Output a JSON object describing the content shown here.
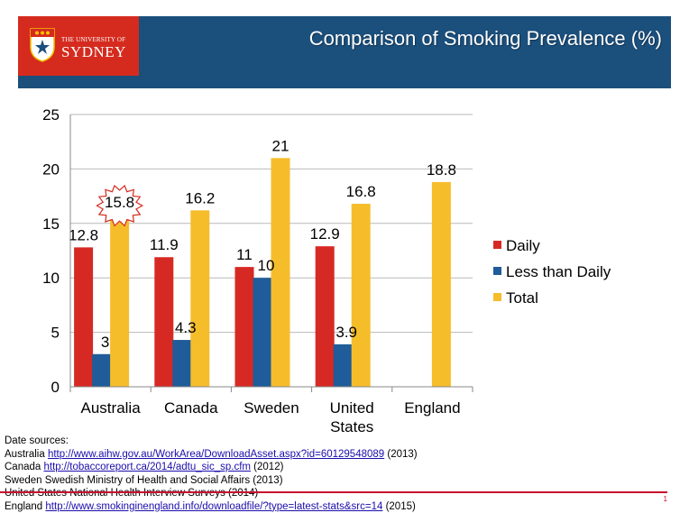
{
  "header": {
    "logo_small": "THE UNIVERSITY OF",
    "logo_big": "SYDNEY",
    "title": "Comparison of Smoking Prevalence (%)"
  },
  "colors": {
    "header_band": "#1b4f7c",
    "logo_box": "#d52b1e",
    "daily": "#d72924",
    "less_than_daily": "#1f5c99",
    "total": "#f6bd2b",
    "highlight": "#d52b1e",
    "rule": "#c8102e"
  },
  "chart_data": {
    "type": "bar",
    "title": "Comparison of Smoking Prevalence (%)",
    "categories": [
      "Australia",
      "Canada",
      "Sweden",
      "United States",
      "England"
    ],
    "category_lines": [
      [
        "Australia"
      ],
      [
        "Canada"
      ],
      [
        "Sweden"
      ],
      [
        "United",
        "States"
      ],
      [
        "England"
      ]
    ],
    "series": [
      {
        "name": "Daily",
        "values": [
          12.8,
          11.9,
          11,
          12.9,
          null
        ]
      },
      {
        "name": "Less than Daily",
        "values": [
          3,
          4.3,
          10,
          3.9,
          null
        ]
      },
      {
        "name": "Total",
        "values": [
          15.8,
          16.2,
          21,
          16.8,
          18.8
        ]
      }
    ],
    "ylim": [
      0,
      25
    ],
    "yticks": [
      0,
      5,
      10,
      15,
      20,
      25
    ],
    "grid": true,
    "legend_position": "right",
    "highlight": {
      "series": "Total",
      "category": "Australia",
      "shape": "starburst"
    }
  },
  "sources": {
    "heading": "Date sources:",
    "lines": [
      {
        "label": "Australia ",
        "link": "http://www.aihw.gov.au/WorkArea/DownloadAsset.aspx?id=60129548089",
        "suffix": " (2013)"
      },
      {
        "label": "Canada ",
        "link": "http://tobaccoreport.ca/2014/adtu_sic_sp.cfm",
        "suffix": " (2012)"
      },
      {
        "label": "Sweden  Swedish Ministry of Health and Social Affairs (2013)",
        "link": "",
        "suffix": ""
      },
      {
        "label": "United States National Health Interview Surveys (2014)",
        "link": "",
        "suffix": ""
      },
      {
        "label": "England ",
        "link": "http://www.smokinginengland.info/downloadfile/?type=latest-stats&src=14",
        "suffix": " (2015)"
      }
    ]
  },
  "page_number": "1"
}
